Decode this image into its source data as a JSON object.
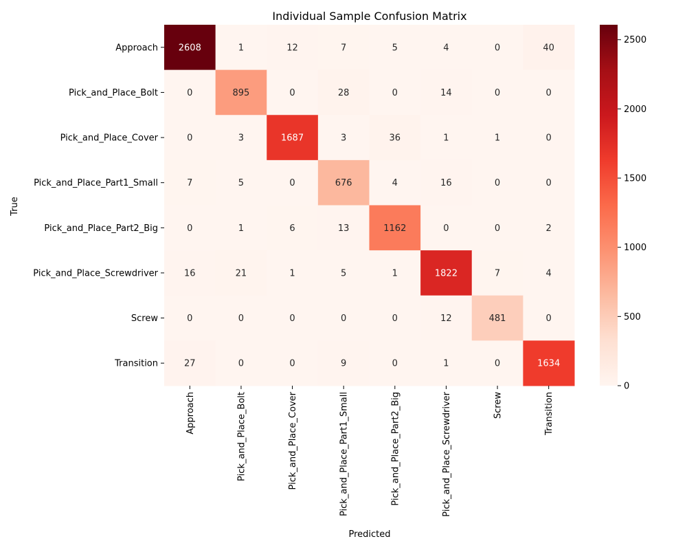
{
  "chart_data": {
    "type": "heatmap",
    "title": "Individual Sample Confusion Matrix",
    "xlabel": "Predicted",
    "ylabel": "True",
    "x_categories": [
      "Approach",
      "Pick_and_Place_Bolt",
      "Pick_and_Place_Cover",
      "Pick_and_Place_Part1_Small",
      "Pick_and_Place_Part2_Big",
      "Pick_and_Place_Screwdriver",
      "Screw",
      "Transition"
    ],
    "y_categories": [
      "Approach",
      "Pick_and_Place_Bolt",
      "Pick_and_Place_Cover",
      "Pick_and_Place_Part1_Small",
      "Pick_and_Place_Part2_Big",
      "Pick_and_Place_Screwdriver",
      "Screw",
      "Transition"
    ],
    "matrix": [
      [
        2608,
        1,
        12,
        7,
        5,
        4,
        0,
        40
      ],
      [
        0,
        895,
        0,
        28,
        0,
        14,
        0,
        0
      ],
      [
        0,
        3,
        1687,
        3,
        36,
        1,
        1,
        0
      ],
      [
        7,
        5,
        0,
        676,
        4,
        16,
        0,
        0
      ],
      [
        0,
        1,
        6,
        13,
        1162,
        0,
        0,
        2
      ],
      [
        16,
        21,
        1,
        5,
        1,
        1822,
        7,
        4
      ],
      [
        0,
        0,
        0,
        0,
        0,
        12,
        481,
        0
      ],
      [
        27,
        0,
        0,
        9,
        0,
        1,
        0,
        1634
      ]
    ],
    "colormap": "Reds",
    "colorbar": {
      "range": [
        0,
        2608
      ],
      "ticks": [
        0,
        500,
        1000,
        1500,
        2000,
        2500
      ],
      "tick_labels": [
        "0",
        "500",
        "1000",
        "1500",
        "2000",
        "2500"
      ]
    },
    "grid": false
  }
}
